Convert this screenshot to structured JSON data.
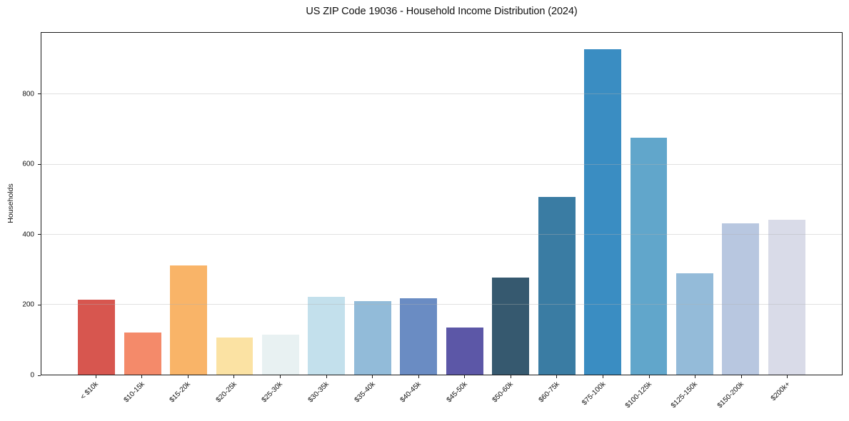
{
  "chart_data": {
    "type": "bar",
    "title": "US ZIP Code 19036 - Household Income Distribution (2024)",
    "xlabel": "",
    "ylabel": "Households",
    "categories": [
      "< $10k",
      "$10-15k",
      "$15-20k",
      "$20-25k",
      "$25-30k",
      "$30-35k",
      "$35-40k",
      "$40-45k",
      "$45-50k",
      "$50-60k",
      "$60-75k",
      "$75-100k",
      "$100-125k",
      "$125-150k",
      "$150-200k",
      "$200k+"
    ],
    "values": [
      214,
      120,
      311,
      107,
      115,
      222,
      209,
      218,
      134,
      278,
      507,
      929,
      676,
      290,
      431,
      443
    ],
    "bar_colors": [
      "#d7564f",
      "#f48a6a",
      "#f9b468",
      "#fbe2a3",
      "#e8f1f2",
      "#c3e0ec",
      "#92bbd9",
      "#6a8cc3",
      "#5c57a7",
      "#36596f",
      "#3a7ca3",
      "#3a8dc2",
      "#61a6cb",
      "#94bbd9",
      "#b8c7e0",
      "#d9dbe8"
    ],
    "ylim": [
      0,
      976
    ],
    "yticks": [
      0,
      200,
      400,
      600,
      800
    ],
    "grid": "horizontal-over-bars",
    "grid_color": "#b0b0b0",
    "axis_color": "#1a1a1a",
    "legend": "none"
  }
}
